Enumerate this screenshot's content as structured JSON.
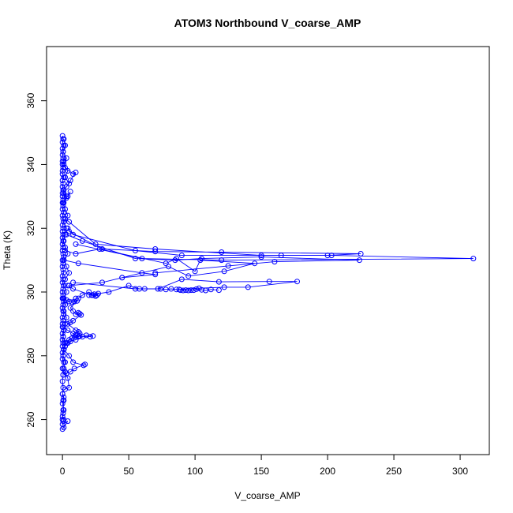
{
  "chart_data": {
    "type": "scatter",
    "title": "ATOM3 Northbound V_coarse_AMP",
    "xlabel": "V_coarse_AMP",
    "ylabel": "Theta (K)",
    "xlim": [
      -12,
      322
    ],
    "ylim": [
      249,
      377
    ],
    "x_ticks": [
      "0",
      "50",
      "100",
      "150",
      "200",
      "250",
      "300"
    ],
    "y_ticks": [
      "260",
      "280",
      "300",
      "320",
      "340",
      "360"
    ],
    "grid": false,
    "marker": "open-circle",
    "connect_points": true,
    "color": "#0000ff",
    "series": [
      {
        "x": [
          0,
          0.5,
          0,
          1,
          0,
          0.5,
          0,
          0.5,
          1,
          0,
          0.5,
          0,
          0,
          1,
          0,
          0.5,
          0,
          0.5,
          1,
          0,
          0.5,
          0,
          0.5,
          0,
          1,
          0,
          0.5,
          1,
          0,
          0.5,
          0,
          0.5,
          0,
          1,
          0,
          0.5,
          0,
          0.5,
          1,
          0,
          0.5,
          0,
          0.5,
          1,
          0,
          0.5,
          0,
          1,
          0.5,
          0,
          0.5,
          0,
          1,
          0.5,
          0,
          0.5,
          1,
          0,
          0.5,
          0,
          0.5,
          1,
          0,
          0.5,
          0,
          0.5,
          0,
          1,
          0,
          0.5,
          0,
          1,
          0,
          0.5,
          0,
          0.5,
          0,
          1,
          0.5,
          0
        ],
        "y": [
          349,
          348,
          347,
          346,
          345,
          344,
          343,
          342,
          341,
          340,
          339,
          338,
          337,
          336,
          335,
          334,
          333,
          332,
          331,
          330,
          329,
          328,
          327,
          326,
          325,
          324,
          323,
          322,
          321,
          320,
          319,
          318,
          317,
          316,
          315,
          314,
          313,
          312,
          311,
          310,
          309,
          308,
          307,
          306,
          305,
          304,
          303,
          302,
          301,
          300,
          299,
          298,
          297,
          296,
          295,
          294,
          293,
          292,
          291,
          290,
          289,
          288,
          287,
          286,
          285,
          284,
          283,
          282,
          281,
          280,
          279,
          278,
          276,
          274,
          272,
          270,
          268,
          266,
          263,
          260
        ]
      },
      {
        "x": [
          1,
          2,
          0.5,
          3,
          1,
          4,
          2,
          5,
          1,
          3,
          0.5,
          2,
          4,
          1,
          3,
          2,
          0.5,
          2,
          4,
          1,
          3,
          5,
          2,
          1,
          3,
          0.5,
          2,
          1,
          3,
          2,
          1,
          0.5,
          2,
          1,
          0.5,
          2,
          1,
          0.5
        ],
        "y": [
          348,
          346,
          344,
          342,
          340,
          338,
          336,
          334,
          332,
          330,
          328,
          326,
          324,
          322,
          320,
          318,
          316,
          314,
          312,
          310,
          308,
          306,
          304,
          302,
          300,
          298,
          296,
          294,
          292,
          290,
          288,
          286,
          284,
          282,
          280,
          278,
          276,
          274
        ]
      },
      {
        "x": [
          0,
          2,
          8,
          10,
          6,
          3
        ],
        "y": [
          341,
          339,
          337,
          337.5,
          335,
          333
        ]
      },
      {
        "x": [
          0,
          4,
          6,
          3,
          1
        ],
        "y": [
          331,
          330,
          331.5,
          329.5,
          328
        ]
      },
      {
        "x": [
          2,
          5,
          25,
          70,
          150,
          200,
          225,
          120,
          70,
          30,
          5
        ],
        "y": [
          323,
          322,
          315,
          313.5,
          311.5,
          311.5,
          312,
          312.5,
          312.7,
          313.5,
          319
        ]
      },
      {
        "x": [
          4,
          8,
          55,
          90,
          165,
          203,
          310,
          120,
          60,
          10
        ],
        "y": [
          320,
          318,
          313,
          311.5,
          311.5,
          311.5,
          310.5,
          310,
          310.5,
          315
        ]
      },
      {
        "x": [
          3,
          15,
          55,
          85,
          105,
          150,
          224,
          160,
          125,
          70
        ],
        "y": [
          318,
          316,
          310.5,
          310,
          310.5,
          311,
          310,
          309.5,
          308.2,
          306
        ]
      },
      {
        "x": [
          2,
          10,
          28,
          78,
          86,
          100,
          104,
          145,
          122,
          95,
          80,
          45
        ],
        "y": [
          313,
          312,
          313.5,
          309,
          310.5,
          306.5,
          310,
          309,
          306.5,
          305,
          308,
          304.5
        ]
      },
      {
        "x": [
          1,
          12,
          60,
          70,
          45,
          30,
          5
        ],
        "y": [
          310,
          309,
          306,
          305.5,
          304.5,
          303,
          302
        ]
      },
      {
        "x": [
          8,
          55,
          72,
          90,
          118,
          156,
          177,
          140,
          122,
          103,
          88
        ],
        "y": [
          303,
          301,
          301,
          304,
          303.2,
          303.3,
          303.3,
          301.5,
          301.5,
          301.2,
          300.8
        ]
      },
      {
        "x": [
          20,
          35,
          50,
          58,
          62,
          74,
          78,
          82,
          86,
          89,
          91,
          93,
          95,
          97,
          99,
          101,
          105,
          108,
          112,
          118
        ],
        "y": [
          299,
          300,
          302,
          301,
          301,
          301,
          300.8,
          301,
          300.8,
          300.6,
          300.5,
          300.6,
          300.5,
          300.6,
          300.6,
          300.9,
          300.7,
          300.5,
          300.8,
          300.6
        ]
      },
      {
        "x": [
          4,
          8,
          22,
          24,
          26,
          27,
          25,
          23,
          20,
          15,
          12,
          10
        ],
        "y": [
          302,
          301,
          299,
          299.3,
          299,
          299.5,
          298.7,
          299,
          300,
          299,
          298,
          298
        ]
      },
      {
        "x": [
          1,
          3,
          5,
          7,
          9,
          11,
          6,
          8,
          10,
          12,
          13,
          14,
          8,
          6,
          4,
          10,
          12,
          13,
          11,
          9,
          5,
          7,
          3,
          2,
          1
        ],
        "y": [
          298,
          297.5,
          297,
          296.8,
          297,
          297.2,
          295,
          294,
          293,
          293.5,
          293.2,
          292.8,
          291,
          290.5,
          290,
          288,
          287.5,
          287,
          286.5,
          286,
          285,
          285.5,
          284,
          283,
          282
        ]
      },
      {
        "x": [
          0,
          4,
          8,
          10,
          12,
          13,
          15,
          21,
          23,
          18,
          10,
          6,
          4,
          2
        ],
        "y": [
          289,
          288,
          287,
          286.5,
          286,
          286.2,
          286,
          286,
          286.2,
          286.4,
          285,
          284.5,
          284,
          283
        ]
      },
      {
        "x": [
          1,
          5,
          8,
          16,
          17,
          9,
          6,
          3,
          2,
          4,
          5,
          2
        ],
        "y": [
          282,
          280,
          278,
          277,
          277.3,
          276,
          275,
          274.5,
          275,
          273,
          270,
          269.5
        ]
      },
      {
        "x": [
          0,
          1,
          0.5,
          0,
          1,
          0.5,
          0,
          1,
          0.5,
          0,
          4,
          1,
          0
        ],
        "y": [
          268,
          267,
          266,
          265,
          263,
          262,
          261,
          260,
          259.5,
          258.5,
          259.5,
          257.5,
          257
        ]
      }
    ]
  }
}
